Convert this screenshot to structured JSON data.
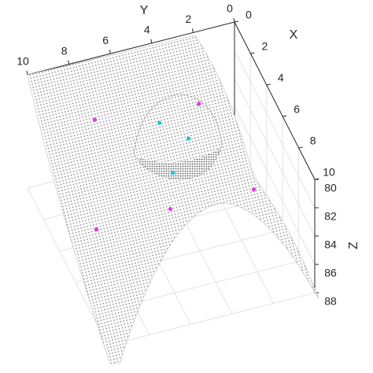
{
  "chart_data": {
    "type": "scatter3d",
    "xlabel": "X",
    "ylabel": "Y",
    "zlabel": "Z",
    "xlim": [
      0,
      10
    ],
    "ylim": [
      0,
      10
    ],
    "zlim": [
      80,
      88
    ],
    "z_reversed": true,
    "xticks": [
      0,
      2,
      4,
      6,
      8,
      10
    ],
    "yticks": [
      0,
      2,
      4,
      6,
      8,
      10
    ],
    "zticks": [
      80,
      82,
      84,
      86,
      88
    ],
    "grid": true,
    "series": [
      {
        "color": "#e23be2",
        "x": [
          2.7,
          3.3,
          8.0,
          7.3,
          7.3
        ],
        "y": [
          7.8,
          3.0,
          6.2,
          9.5,
          1.9
        ],
        "z": [
          81,
          81,
          82,
          83,
          83
        ]
      },
      {
        "color": "#21c6c6",
        "x": [
          3.8,
          5.1,
          6.0
        ],
        "y": [
          5.1,
          4.2,
          5.3
        ],
        "z": [
          81,
          81,
          82
        ]
      }
    ]
  }
}
